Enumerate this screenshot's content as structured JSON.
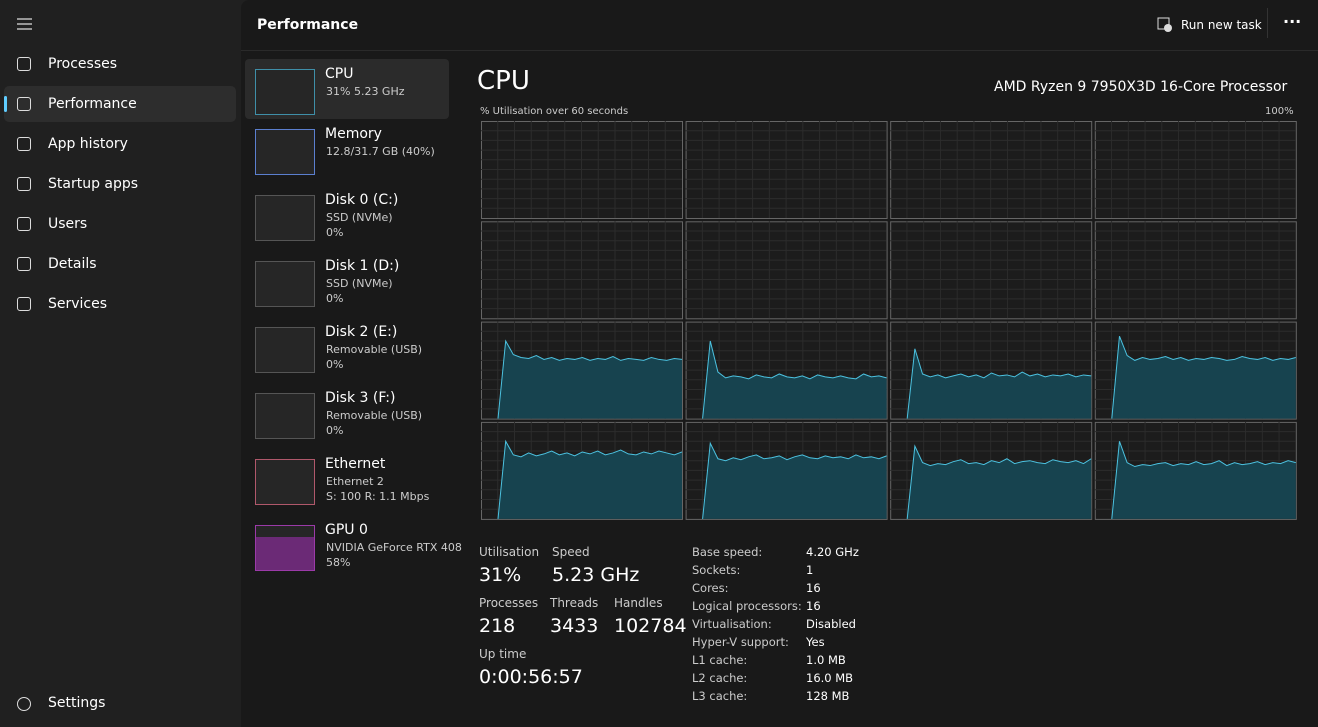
{
  "nav": {
    "items": [
      "Processes",
      "Performance",
      "App history",
      "Startup apps",
      "Users",
      "Details",
      "Services"
    ],
    "settings": "Settings"
  },
  "header": {
    "title": "Performance",
    "run_task": "Run new task"
  },
  "devices": [
    {
      "name": "CPU",
      "lines": [
        "31%  5.23 GHz"
      ]
    },
    {
      "name": "Memory",
      "lines": [
        "12.8/31.7 GB (40%)"
      ]
    },
    {
      "name": "Disk 0 (C:)",
      "lines": [
        "SSD (NVMe)",
        "0%"
      ]
    },
    {
      "name": "Disk 1 (D:)",
      "lines": [
        "SSD (NVMe)",
        "0%"
      ]
    },
    {
      "name": "Disk 2 (E:)",
      "lines": [
        "Removable (USB)",
        "0%"
      ]
    },
    {
      "name": "Disk 3 (F:)",
      "lines": [
        "Removable (USB)",
        "0%"
      ]
    },
    {
      "name": "Ethernet",
      "lines": [
        "Ethernet 2",
        "S: 100  R: 1.1 Mbps"
      ]
    },
    {
      "name": "GPU 0",
      "lines": [
        "NVIDIA GeForce RTX 408",
        "58%"
      ]
    }
  ],
  "cpu": {
    "title": "CPU",
    "model": "AMD Ryzen 9 7950X3D 16-Core Processor",
    "graph_label": "% Utilisation over 60 seconds",
    "graph_max": "100%",
    "core_history": [
      [
        0,
        80,
        66,
        63,
        62,
        65,
        61,
        63,
        60,
        62,
        61,
        63,
        60,
        62,
        61,
        64,
        60,
        62,
        61,
        60,
        63,
        61,
        60,
        62,
        61
      ],
      [
        0,
        80,
        48,
        42,
        44,
        43,
        41,
        45,
        43,
        42,
        46,
        43,
        42,
        44,
        41,
        45,
        43,
        42,
        44,
        42,
        41,
        46,
        43,
        44,
        42
      ],
      [
        0,
        72,
        46,
        43,
        45,
        42,
        44,
        46,
        43,
        45,
        42,
        47,
        44,
        45,
        43,
        48,
        44,
        46,
        43,
        45,
        44,
        46,
        43,
        45,
        44
      ],
      [
        0,
        85,
        65,
        60,
        63,
        61,
        62,
        64,
        61,
        63,
        60,
        62,
        61,
        63,
        62,
        60,
        61,
        64,
        62,
        61,
        63,
        60,
        62,
        61,
        63
      ],
      [
        0,
        80,
        66,
        64,
        68,
        65,
        67,
        70,
        66,
        68,
        65,
        69,
        67,
        70,
        66,
        68,
        71,
        67,
        66,
        69,
        67,
        70,
        68,
        66,
        69
      ],
      [
        0,
        78,
        62,
        60,
        63,
        61,
        64,
        66,
        62,
        63,
        65,
        61,
        64,
        66,
        63,
        62,
        65,
        63,
        64,
        62,
        66,
        63,
        64,
        62,
        65
      ],
      [
        0,
        75,
        58,
        55,
        57,
        56,
        59,
        61,
        57,
        58,
        56,
        60,
        58,
        62,
        57,
        59,
        60,
        58,
        57,
        61,
        59,
        58,
        60,
        57,
        62
      ],
      [
        0,
        80,
        58,
        54,
        56,
        55,
        57,
        58,
        55,
        57,
        56,
        59,
        56,
        57,
        60,
        55,
        58,
        56,
        57,
        59,
        56,
        58,
        57,
        60,
        58
      ]
    ],
    "stats": [
      {
        "label": "Utilisation",
        "value": "31%"
      },
      {
        "label": "Speed",
        "value": "5.23 GHz"
      },
      {
        "label": "Processes",
        "value": "218"
      },
      {
        "label": "Threads",
        "value": "3433"
      },
      {
        "label": "Handles",
        "value": "102784"
      },
      {
        "label": "Up time",
        "value": "0:00:56:57"
      }
    ],
    "details": [
      [
        "Base speed:",
        "4.20 GHz"
      ],
      [
        "Sockets:",
        "1"
      ],
      [
        "Cores:",
        "16"
      ],
      [
        "Logical processors:",
        "16"
      ],
      [
        "Virtualisation:",
        "Disabled"
      ],
      [
        "Hyper-V support:",
        "Yes"
      ],
      [
        "L1 cache:",
        "1.0 MB"
      ],
      [
        "L2 cache:",
        "16.0 MB"
      ],
      [
        "L3 cache:",
        "128 MB"
      ]
    ]
  }
}
